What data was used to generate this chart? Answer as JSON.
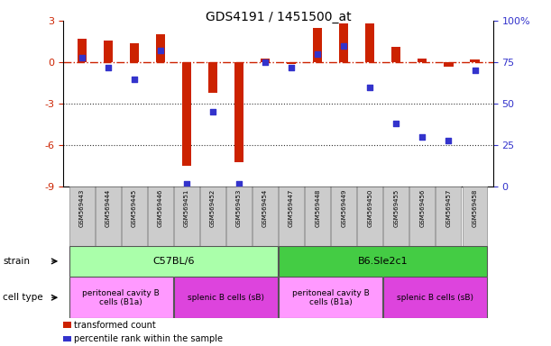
{
  "title": "GDS4191 / 1451500_at",
  "samples": [
    "GSM569443",
    "GSM569444",
    "GSM569445",
    "GSM569446",
    "GSM569451",
    "GSM569452",
    "GSM569453",
    "GSM569454",
    "GSM569447",
    "GSM569448",
    "GSM569449",
    "GSM569450",
    "GSM569455",
    "GSM569456",
    "GSM569457",
    "GSM569458"
  ],
  "red_vals": [
    1.7,
    1.6,
    1.4,
    2.0,
    -7.5,
    -2.2,
    -7.2,
    0.3,
    -0.1,
    2.5,
    2.8,
    2.8,
    1.1,
    0.3,
    -0.3,
    0.2
  ],
  "blue_pct": [
    78,
    72,
    65,
    82,
    2,
    45,
    2,
    75,
    72,
    80,
    85,
    60,
    38,
    30,
    28,
    70
  ],
  "ylim_left": [
    -9,
    3
  ],
  "ylim_right": [
    0,
    100
  ],
  "y_left_ticks": [
    3,
    0,
    -3,
    -6,
    -9
  ],
  "y_right_ticks": [
    100,
    75,
    50,
    25,
    0
  ],
  "y_right_labels": [
    "100%",
    "75",
    "50",
    "25",
    "0"
  ],
  "bar_color_red": "#cc2200",
  "bar_color_blue": "#3333cc",
  "hline_color": "#cc2200",
  "dotted_line_color": "#333333",
  "background_color": "#ffffff",
  "bar_width": 0.35,
  "sample_box_color": "#cccccc",
  "strain_groups": [
    {
      "label": "C57BL/6",
      "start": 0,
      "end": 7,
      "color": "#aaffaa"
    },
    {
      "label": "B6.Sle2c1",
      "start": 8,
      "end": 15,
      "color": "#44cc44"
    }
  ],
  "cell_groups": [
    {
      "label": "peritoneal cavity B\ncells (B1a)",
      "start": 0,
      "end": 3,
      "color": "#ff99ff"
    },
    {
      "label": "splenic B cells (sB)",
      "start": 4,
      "end": 7,
      "color": "#dd44dd"
    },
    {
      "label": "peritoneal cavity B\ncells (B1a)",
      "start": 8,
      "end": 11,
      "color": "#ff99ff"
    },
    {
      "label": "splenic B cells (sB)",
      "start": 12,
      "end": 15,
      "color": "#dd44dd"
    }
  ],
  "legend_items": [
    {
      "label": "transformed count",
      "color": "#cc2200"
    },
    {
      "label": "percentile rank within the sample",
      "color": "#3333cc"
    }
  ]
}
